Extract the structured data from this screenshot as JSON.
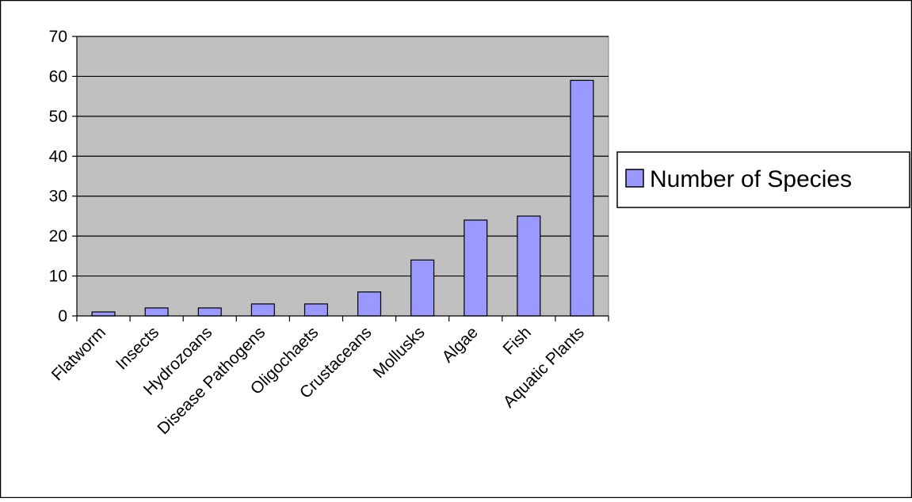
{
  "chart_data": {
    "type": "bar",
    "categories": [
      "Flatworm",
      "Insects",
      "Hydrozoans",
      "Disease Pathogens",
      "Oligochaets",
      "Crustaceans",
      "Mollusks",
      "Algae",
      "Fish",
      "Aquatic Plants"
    ],
    "series": [
      {
        "name": "Number of Species",
        "values": [
          1,
          2,
          2,
          3,
          3,
          6,
          14,
          24,
          25,
          59
        ]
      }
    ],
    "ylim": [
      0,
      70
    ],
    "yticks": [
      0,
      10,
      20,
      30,
      40,
      50,
      60,
      70
    ],
    "grid": true,
    "legend_position": "right",
    "colors": {
      "plot_background": "#c0c0c0",
      "bar_fill": "#9999ff",
      "bar_stroke": "#000000",
      "gridline": "#000000",
      "legend_swatch": "#9999ff"
    }
  }
}
